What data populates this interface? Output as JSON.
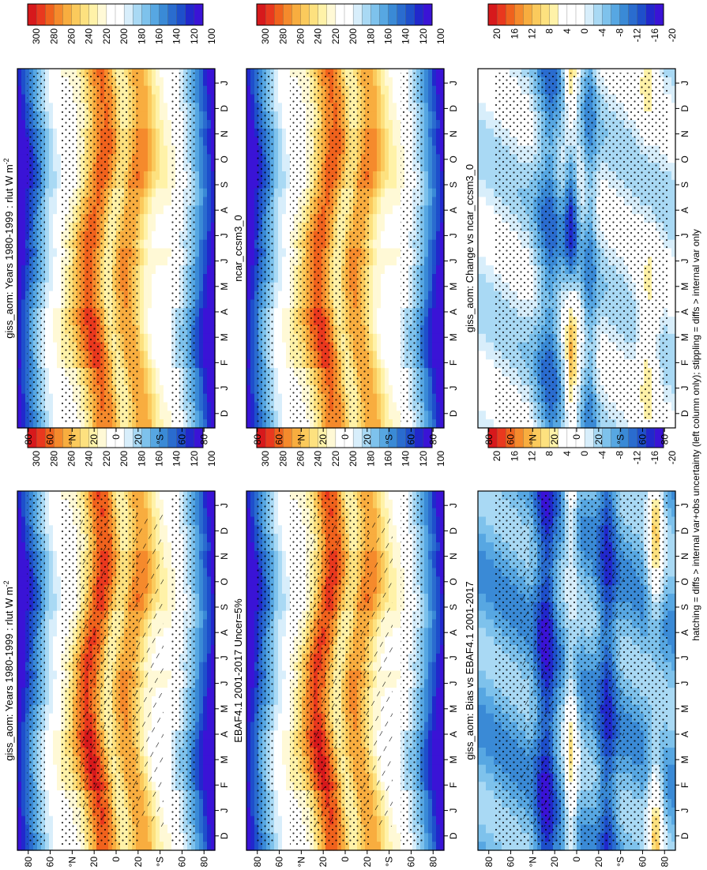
{
  "chart_data": {
    "type": "heatmap",
    "figure_footer": "hatching = diffs > internal var+obs uncertainty (left column only); stippling = diffs > internal var only",
    "x_ticks": [
      "D",
      "J",
      "F",
      "M",
      "A",
      "M",
      "J",
      "J",
      "A",
      "S",
      "O",
      "N",
      "D",
      "J"
    ],
    "y_ticks": [
      "80",
      "60",
      "°N",
      "20",
      "0",
      "20",
      "°S",
      "60",
      "80"
    ],
    "panels": [
      {
        "id": "rlut-model",
        "title": "giss_aom: Years 1980-1999 : rlut W m",
        "title_sup": "-2",
        "kind": "abs",
        "hatch": true,
        "colorbar_labels": [
          "300",
          "280",
          "260",
          "240",
          "220",
          "200",
          "180",
          "160",
          "140",
          "120",
          "100"
        ]
      },
      {
        "id": "rlut-ref-model",
        "title": "giss_aom: Years 1980-1999 : rlut W m",
        "title_sup": "-2",
        "kind": "abs",
        "hatch": false,
        "colorbar_labels": [
          "300",
          "280",
          "260",
          "240",
          "220",
          "200",
          "180",
          "160",
          "140",
          "120",
          "100"
        ]
      },
      {
        "id": "ebaf-obs",
        "title": "EBAF4.1 2001-2017 Uncer=5%",
        "title_sup": "",
        "kind": "abs",
        "hatch": true,
        "colorbar_labels": [
          "300",
          "280",
          "260",
          "240",
          "220",
          "200",
          "180",
          "160",
          "140",
          "120",
          "100"
        ]
      },
      {
        "id": "ncar-model",
        "title": "ncar_ccsm3_0",
        "title_sup": "",
        "kind": "abs",
        "hatch": false,
        "colorbar_labels": [
          "300",
          "280",
          "260",
          "240",
          "220",
          "200",
          "180",
          "160",
          "140",
          "120",
          "100"
        ]
      },
      {
        "id": "bias",
        "title": "giss_aom: Bias vs EBAF4.1 2001-2017",
        "title_sup": "",
        "kind": "diff",
        "hatch": true,
        "colorbar_labels": [
          "20",
          "16",
          "12",
          "8",
          "4",
          "0",
          "-4",
          "-8",
          "-12",
          "-16",
          "-20"
        ]
      },
      {
        "id": "change",
        "title": "giss_aom: Change vs ncar_ccsm3_0",
        "title_sup": "",
        "kind": "diff",
        "hatch": false,
        "colorbar_labels": [
          "20",
          "16",
          "12",
          "8",
          "4",
          "0",
          "-4",
          "-8",
          "-12",
          "-16",
          "-20"
        ]
      }
    ],
    "colors_abs": [
      "#d7191c",
      "#e9381e",
      "#f0621d",
      "#f58a2c",
      "#f8ad3f",
      "#fbca5c",
      "#fde17f",
      "#fff2a8",
      "#fff9d6",
      "#ffffff",
      "#ffffff",
      "#d8eefb",
      "#a9d9f4",
      "#7ec2ec",
      "#57a7e2",
      "#3a8ad6",
      "#2a6ccf",
      "#1e4fcb",
      "#2128cc",
      "#3a13d6"
    ],
    "colors_diff": [
      "#d7191c",
      "#e9381e",
      "#f0621d",
      "#f58a2c",
      "#f8ad3f",
      "#fbca5c",
      "#fde17f",
      "#fff2a8",
      "#ffffff",
      "#ffffff",
      "#ffffff",
      "#d8eefb",
      "#a9d9f4",
      "#7ec2ec",
      "#57a7e2",
      "#3a8ad6",
      "#2a6ccf",
      "#1e4fcb",
      "#2128cc",
      "#3a13d6"
    ],
    "abs_range": [
      100,
      300
    ],
    "diff_range": [
      -20,
      20
    ]
  }
}
